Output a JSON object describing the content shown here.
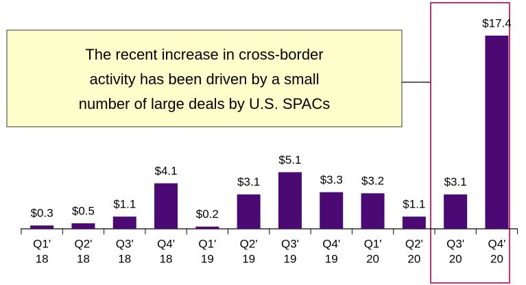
{
  "chart_data": {
    "type": "bar",
    "annotation": [
      "The recent increase in cross-border",
      "activity has been driven by a small",
      "number of large deals by U.S. SPACs"
    ],
    "categories": [
      [
        "Q1'",
        "18"
      ],
      [
        "Q2'",
        "18"
      ],
      [
        "Q3'",
        "18"
      ],
      [
        "Q4'",
        "18"
      ],
      [
        "Q1'",
        "19"
      ],
      [
        "Q2'",
        "19"
      ],
      [
        "Q3'",
        "19"
      ],
      [
        "Q4'",
        "19"
      ],
      [
        "Q1'",
        "20"
      ],
      [
        "Q2'",
        "20"
      ],
      [
        "Q3'",
        "20"
      ],
      [
        "Q4'",
        "20"
      ]
    ],
    "values": [
      0.3,
      0.5,
      1.1,
      4.1,
      0.2,
      3.1,
      5.1,
      3.3,
      3.2,
      1.1,
      3.1,
      17.4
    ],
    "value_labels": [
      "$0.3",
      "$0.5",
      "$1.1",
      "$4.1",
      "$0.2",
      "$3.1",
      "$5.1",
      "$3.3",
      "$3.2",
      "$1.1",
      "$3.1",
      "$17.4"
    ],
    "color": "#4b0a73"
  }
}
